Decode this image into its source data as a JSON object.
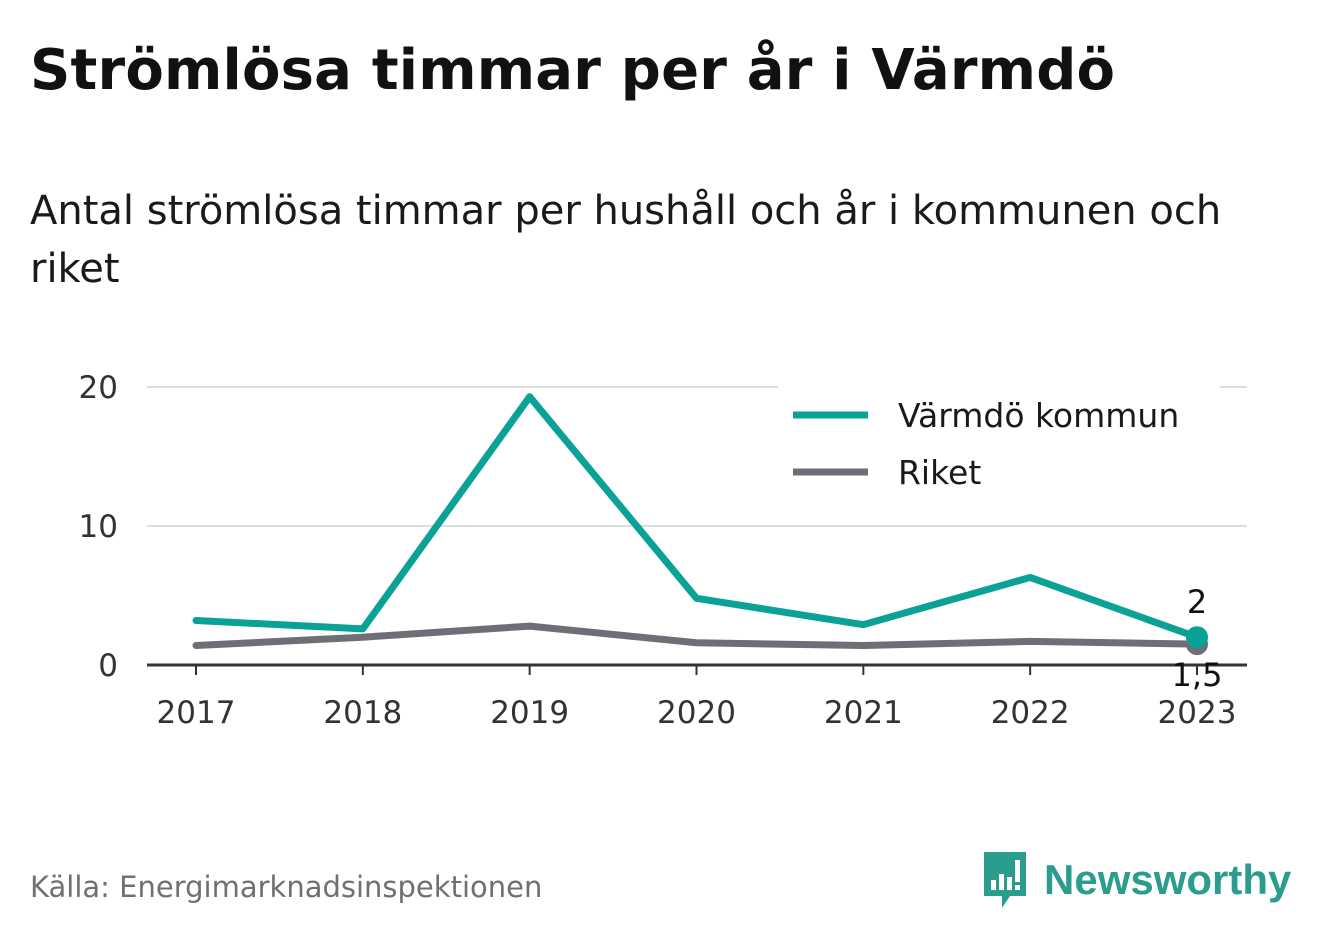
{
  "header": {
    "title": "Strömlösa timmar per år i Värmdö",
    "subtitle": "Antal strömlösa timmar per hushåll och år i kommunen och riket"
  },
  "footer": {
    "source": "Källa: Energimarknadsinspektionen",
    "brand": "Newsworthy"
  },
  "colors": {
    "varmdo": "#0aa196",
    "riket": "#6e6e76",
    "grid": "#dddddd",
    "axis": "#333333",
    "brand": "#2a9d8f"
  },
  "chart_data": {
    "type": "line",
    "x": [
      "2017",
      "2018",
      "2019",
      "2020",
      "2021",
      "2022",
      "2023"
    ],
    "ylim": [
      0,
      20
    ],
    "yticks": [
      "0",
      "10",
      "20"
    ],
    "grid": true,
    "legend": "top-right",
    "series": [
      {
        "name": "Värmdö kommun",
        "color": "#0aa196",
        "values": [
          3.2,
          2.6,
          19.3,
          4.8,
          2.9,
          6.3,
          2.0
        ],
        "end_label": "2"
      },
      {
        "name": "Riket",
        "color": "#6e6e76",
        "values": [
          1.4,
          2.0,
          2.8,
          1.6,
          1.4,
          1.7,
          1.5
        ],
        "end_label": "1,5"
      }
    ]
  }
}
